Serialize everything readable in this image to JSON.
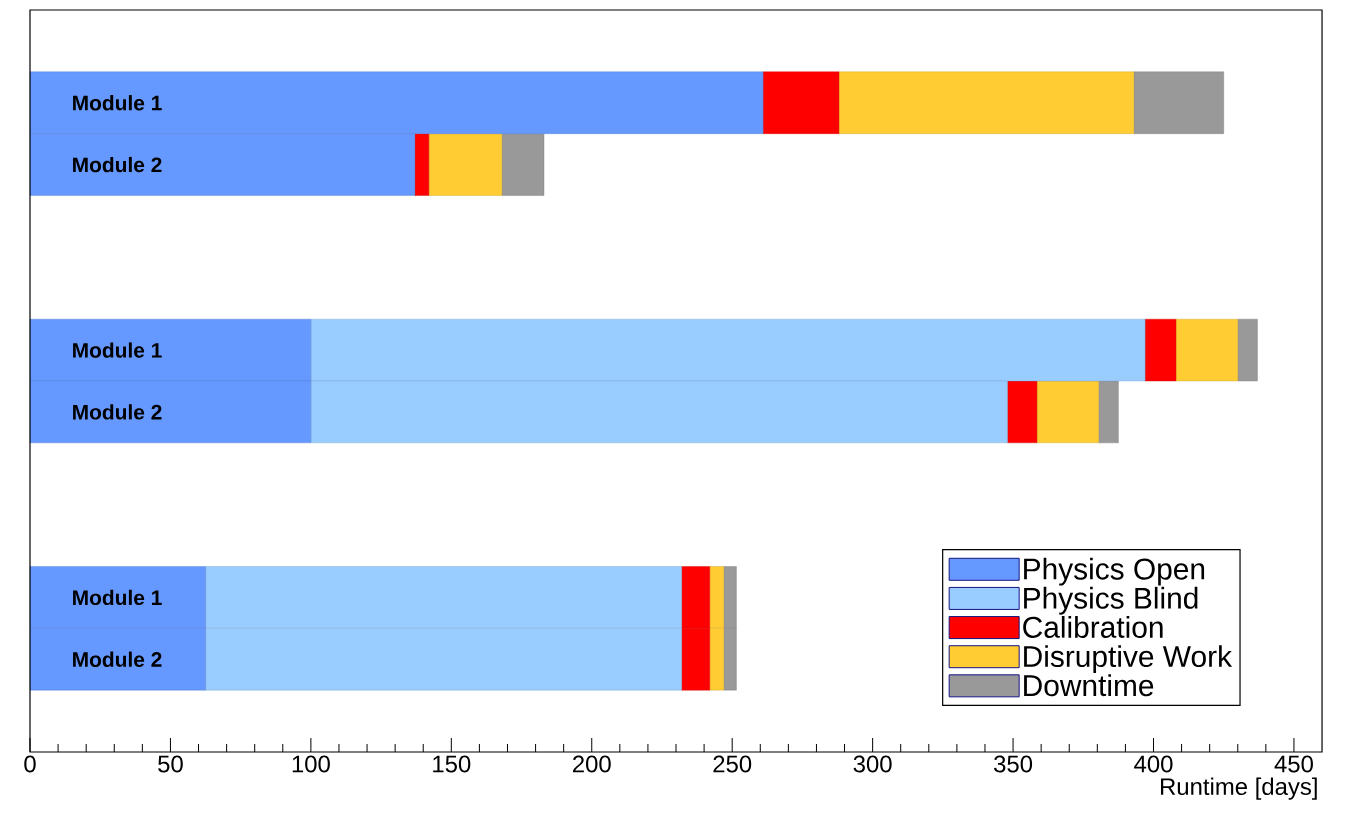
{
  "chart_data": {
    "type": "bar",
    "orientation": "horizontal",
    "stacked": true,
    "xlabel": "Runtime [days]",
    "categories": [
      null,
      "Module 1",
      "Module 2",
      null,
      null,
      "Module 1",
      "Module 2",
      null,
      null,
      "Module 1",
      "Module 2",
      null
    ],
    "series": [
      {
        "name": "Physics Open",
        "color": "#6699ff",
        "values": [
          null,
          261,
          137,
          null,
          null,
          100,
          100,
          null,
          null,
          62.5,
          62.5,
          null
        ]
      },
      {
        "name": "Physics Blind",
        "color": "#99ccff",
        "values": [
          null,
          null,
          null,
          null,
          null,
          297,
          248,
          null,
          null,
          169.5,
          169.5,
          null
        ]
      },
      {
        "name": "Calibration",
        "color": "#ff0000",
        "values": [
          null,
          27,
          5,
          null,
          null,
          11,
          10.5,
          null,
          null,
          10,
          10,
          null
        ]
      },
      {
        "name": "Disruptive Work",
        "color": "#ffcc33",
        "values": [
          null,
          105,
          26,
          null,
          null,
          22,
          22,
          null,
          null,
          5,
          5,
          null
        ]
      },
      {
        "name": "Downtime",
        "color": "#999999",
        "values": [
          null,
          32,
          15,
          null,
          null,
          7,
          7,
          null,
          null,
          4.5,
          4.5,
          null
        ]
      }
    ],
    "xlim": [
      0,
      460
    ],
    "xticks": [
      0,
      50,
      100,
      150,
      200,
      250,
      300,
      350,
      400,
      450
    ],
    "legend": "bottom right",
    "grid": false
  }
}
